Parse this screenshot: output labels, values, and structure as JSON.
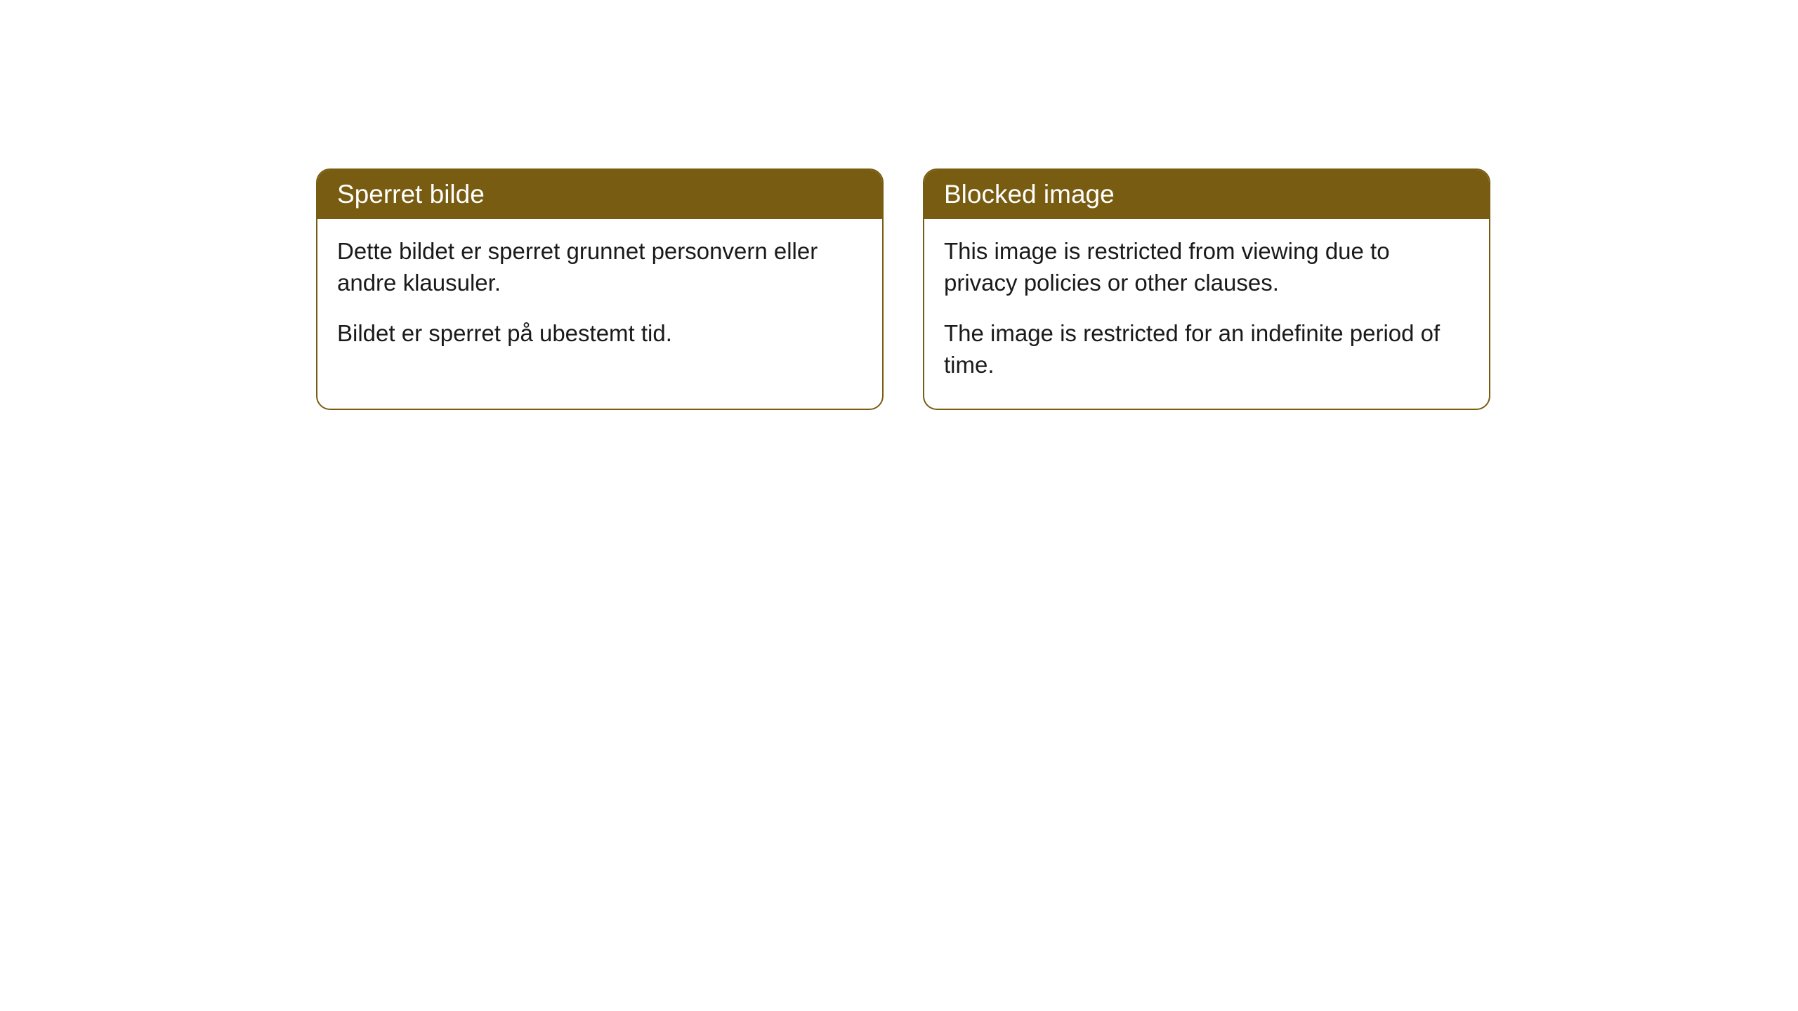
{
  "cards": [
    {
      "title": "Sperret bilde",
      "paragraph1": "Dette bildet er sperret grunnet personvern eller andre klausuler.",
      "paragraph2": "Bildet er sperret på ubestemt tid."
    },
    {
      "title": "Blocked image",
      "paragraph1": "This image is restricted from viewing due to privacy policies or other clauses.",
      "paragraph2": "The image is restricted for an indefinite period of time."
    }
  ],
  "style": {
    "header_bg_color": "#785c11",
    "header_text_color": "#ffffff",
    "border_color": "#785c11",
    "body_bg_color": "#ffffff",
    "body_text_color": "#1a1a1a",
    "border_radius": 20,
    "title_fontsize": 37,
    "body_fontsize": 33
  }
}
